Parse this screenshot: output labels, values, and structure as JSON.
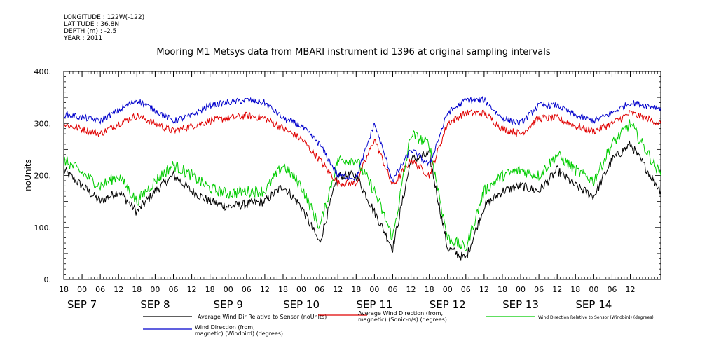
{
  "header": {
    "longitude": "LONGITUDE : 122W(-122)",
    "latitude": "LATITUDE : 36.8N",
    "depth": "DEPTH (m) : -2.5",
    "year": "YEAR : 2011",
    "title": "Mooring M1 Metsys data from MBARI instrument id 1396 at original sampling intervals"
  },
  "chart_data": {
    "type": "line",
    "title": "Mooring M1 Metsys data from MBARI instrument id 1396 at original sampling intervals",
    "xlabel": "",
    "ylabel": "noUnits",
    "xlim": [
      "2011-09-06T18:00",
      "2011-09-14T22:00"
    ],
    "ylim": [
      0,
      400
    ],
    "y_ticks": [
      "0.",
      "100.",
      "200.",
      "300.",
      "400."
    ],
    "y_tick_values": [
      0,
      100,
      200,
      300,
      400
    ],
    "hour_ticks": [
      "18",
      "00",
      "06",
      "12",
      "18",
      "00",
      "06",
      "12",
      "18",
      "00",
      "06",
      "12",
      "18",
      "00",
      "06",
      "12",
      "18",
      "00",
      "06",
      "12",
      "18",
      "00",
      "06",
      "12",
      "18",
      "00",
      "06",
      "12",
      "18",
      "00",
      "06",
      "12"
    ],
    "day_labels": [
      {
        "label": "SEP  7",
        "date": "2011-09-07"
      },
      {
        "label": "SEP  8",
        "date": "2011-09-08"
      },
      {
        "label": "SEP  9",
        "date": "2011-09-09"
      },
      {
        "label": "SEP 10",
        "date": "2011-09-10"
      },
      {
        "label": "SEP 11",
        "date": "2011-09-11"
      },
      {
        "label": "SEP 12",
        "date": "2011-09-12"
      },
      {
        "label": "SEP 13",
        "date": "2011-09-13"
      },
      {
        "label": "SEP 14",
        "date": "2011-09-14"
      }
    ],
    "grid": false,
    "legend_position": "bottom",
    "series": [
      {
        "name": "Average Wind Dir Relative to Sensor (noUnits)",
        "color": "#000000",
        "points": [
          [
            "2011-09-06T18:00",
            210
          ],
          [
            "2011-09-07T06:00",
            150
          ],
          [
            "2011-09-07T12:00",
            170
          ],
          [
            "2011-09-07T18:00",
            130
          ],
          [
            "2011-09-08T00:00",
            170
          ],
          [
            "2011-09-08T06:00",
            200
          ],
          [
            "2011-09-08T12:00",
            170
          ],
          [
            "2011-09-08T18:00",
            150
          ],
          [
            "2011-09-09T00:00",
            140
          ],
          [
            "2011-09-09T06:00",
            145
          ],
          [
            "2011-09-09T12:00",
            150
          ],
          [
            "2011-09-09T18:00",
            180
          ],
          [
            "2011-09-10T00:00",
            140
          ],
          [
            "2011-09-10T06:00",
            70
          ],
          [
            "2011-09-10T12:00",
            200
          ],
          [
            "2011-09-10T18:00",
            200
          ],
          [
            "2011-09-11T00:00",
            130
          ],
          [
            "2011-09-11T06:00",
            60
          ],
          [
            "2011-09-11T12:00",
            230
          ],
          [
            "2011-09-11T18:00",
            240
          ],
          [
            "2011-09-12T00:00",
            60
          ],
          [
            "2011-09-12T06:00",
            40
          ],
          [
            "2011-09-12T12:00",
            140
          ],
          [
            "2011-09-12T18:00",
            170
          ],
          [
            "2011-09-13T00:00",
            180
          ],
          [
            "2011-09-13T06:00",
            170
          ],
          [
            "2011-09-13T12:00",
            210
          ],
          [
            "2011-09-13T18:00",
            180
          ],
          [
            "2011-09-14T00:00",
            160
          ],
          [
            "2011-09-14T06:00",
            230
          ],
          [
            "2011-09-14T12:00",
            260
          ],
          [
            "2011-09-14T22:00",
            170
          ]
        ]
      },
      {
        "name": "Average Wind Direction (from, magnetic) (Sonic-n/s) (degrees)",
        "color": "#e00000",
        "points": [
          [
            "2011-09-06T18:00",
            298
          ],
          [
            "2011-09-07T06:00",
            280
          ],
          [
            "2011-09-07T12:00",
            300
          ],
          [
            "2011-09-07T18:00",
            315
          ],
          [
            "2011-09-08T00:00",
            300
          ],
          [
            "2011-09-08T06:00",
            285
          ],
          [
            "2011-09-08T12:00",
            295
          ],
          [
            "2011-09-08T18:00",
            305
          ],
          [
            "2011-09-09T00:00",
            310
          ],
          [
            "2011-09-09T06:00",
            315
          ],
          [
            "2011-09-09T12:00",
            310
          ],
          [
            "2011-09-09T18:00",
            290
          ],
          [
            "2011-09-10T00:00",
            270
          ],
          [
            "2011-09-10T06:00",
            230
          ],
          [
            "2011-09-10T12:00",
            185
          ],
          [
            "2011-09-10T18:00",
            185
          ],
          [
            "2011-09-11T00:00",
            270
          ],
          [
            "2011-09-11T06:00",
            180
          ],
          [
            "2011-09-11T12:00",
            230
          ],
          [
            "2011-09-11T18:00",
            200
          ],
          [
            "2011-09-12T00:00",
            300
          ],
          [
            "2011-09-12T06:00",
            320
          ],
          [
            "2011-09-12T12:00",
            320
          ],
          [
            "2011-09-12T18:00",
            290
          ],
          [
            "2011-09-13T00:00",
            280
          ],
          [
            "2011-09-13T06:00",
            310
          ],
          [
            "2011-09-13T12:00",
            310
          ],
          [
            "2011-09-13T18:00",
            295
          ],
          [
            "2011-09-14T00:00",
            285
          ],
          [
            "2011-09-14T06:00",
            300
          ],
          [
            "2011-09-14T12:00",
            320
          ],
          [
            "2011-09-14T22:00",
            300
          ]
        ]
      },
      {
        "name": "Wind Direction Relative to Sensor (Windbird) (degrees)",
        "color": "#00cc00",
        "points": [
          [
            "2011-09-06T18:00",
            230
          ],
          [
            "2011-09-07T06:00",
            180
          ],
          [
            "2011-09-07T12:00",
            200
          ],
          [
            "2011-09-07T18:00",
            150
          ],
          [
            "2011-09-08T00:00",
            190
          ],
          [
            "2011-09-08T06:00",
            220
          ],
          [
            "2011-09-08T12:00",
            200
          ],
          [
            "2011-09-08T18:00",
            175
          ],
          [
            "2011-09-09T00:00",
            165
          ],
          [
            "2011-09-09T06:00",
            170
          ],
          [
            "2011-09-09T12:00",
            170
          ],
          [
            "2011-09-09T18:00",
            220
          ],
          [
            "2011-09-10T00:00",
            180
          ],
          [
            "2011-09-10T06:00",
            100
          ],
          [
            "2011-09-10T12:00",
            230
          ],
          [
            "2011-09-10T18:00",
            230
          ],
          [
            "2011-09-11T00:00",
            170
          ],
          [
            "2011-09-11T06:00",
            80
          ],
          [
            "2011-09-11T12:00",
            280
          ],
          [
            "2011-09-11T18:00",
            260
          ],
          [
            "2011-09-12T00:00",
            80
          ],
          [
            "2011-09-12T06:00",
            60
          ],
          [
            "2011-09-12T12:00",
            170
          ],
          [
            "2011-09-12T18:00",
            200
          ],
          [
            "2011-09-13T00:00",
            210
          ],
          [
            "2011-09-13T06:00",
            200
          ],
          [
            "2011-09-13T12:00",
            240
          ],
          [
            "2011-09-13T18:00",
            210
          ],
          [
            "2011-09-14T00:00",
            190
          ],
          [
            "2011-09-14T06:00",
            260
          ],
          [
            "2011-09-14T12:00",
            300
          ],
          [
            "2011-09-14T22:00",
            200
          ]
        ]
      },
      {
        "name": "Wind Direction (from, magnetic) (Windbird) (degrees)",
        "color": "#0000cc",
        "points": [
          [
            "2011-09-06T18:00",
            318
          ],
          [
            "2011-09-07T06:00",
            305
          ],
          [
            "2011-09-07T12:00",
            325
          ],
          [
            "2011-09-07T18:00",
            345
          ],
          [
            "2011-09-08T00:00",
            325
          ],
          [
            "2011-09-08T06:00",
            305
          ],
          [
            "2011-09-08T12:00",
            315
          ],
          [
            "2011-09-08T18:00",
            335
          ],
          [
            "2011-09-09T00:00",
            340
          ],
          [
            "2011-09-09T06:00",
            345
          ],
          [
            "2011-09-09T12:00",
            340
          ],
          [
            "2011-09-09T18:00",
            310
          ],
          [
            "2011-09-10T00:00",
            295
          ],
          [
            "2011-09-10T06:00",
            260
          ],
          [
            "2011-09-10T12:00",
            200
          ],
          [
            "2011-09-10T18:00",
            195
          ],
          [
            "2011-09-11T00:00",
            300
          ],
          [
            "2011-09-11T06:00",
            190
          ],
          [
            "2011-09-11T12:00",
            250
          ],
          [
            "2011-09-11T18:00",
            220
          ],
          [
            "2011-09-12T00:00",
            320
          ],
          [
            "2011-09-12T06:00",
            345
          ],
          [
            "2011-09-12T12:00",
            345
          ],
          [
            "2011-09-12T18:00",
            310
          ],
          [
            "2011-09-13T00:00",
            300
          ],
          [
            "2011-09-13T06:00",
            335
          ],
          [
            "2011-09-13T12:00",
            335
          ],
          [
            "2011-09-13T18:00",
            315
          ],
          [
            "2011-09-14T00:00",
            305
          ],
          [
            "2011-09-14T06:00",
            320
          ],
          [
            "2011-09-14T12:00",
            340
          ],
          [
            "2011-09-14T22:00",
            330
          ]
        ]
      }
    ],
    "legend": [
      {
        "lines": [
          "Average Wind Dir Relative to Sensor (noUnits)"
        ],
        "color": "#000000"
      },
      {
        "lines": [
          "Average Wind Direction (from,",
          "magnetic) (Sonic-n/s) (degrees)"
        ],
        "color": "#e00000"
      },
      {
        "lines": [
          "Wind Direction Relative to Sensor (Windbird) (degrees)"
        ],
        "color": "#00cc00"
      },
      {
        "lines": [
          "Wind Direction (from,",
          "magnetic) (Windbird) (degrees)"
        ],
        "color": "#0000cc"
      }
    ]
  }
}
